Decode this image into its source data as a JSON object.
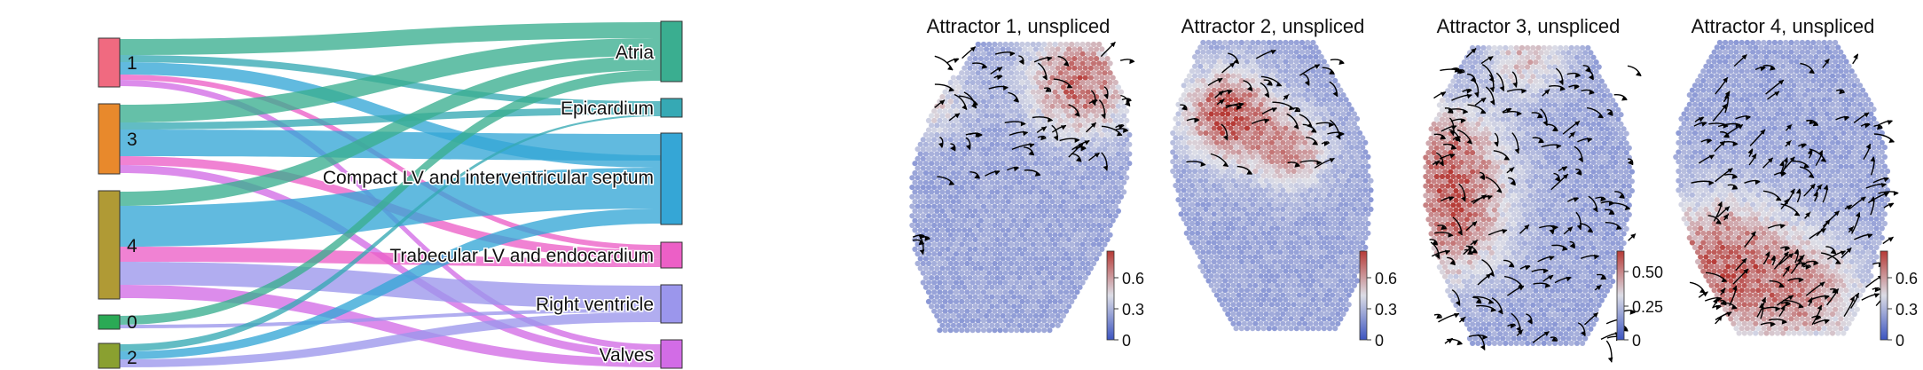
{
  "sankey": {
    "sources": [
      {
        "label": "1",
        "color": "#f06a80"
      },
      {
        "label": "3",
        "color": "#e8892c"
      },
      {
        "label": "4",
        "color": "#b09a35"
      },
      {
        "label": "0",
        "color": "#2aaa55"
      },
      {
        "label": "2",
        "color": "#8aa030"
      }
    ],
    "targets": [
      {
        "label": "Atria",
        "color": "#3aae90"
      },
      {
        "label": "Epicardium",
        "color": "#36a9b4"
      },
      {
        "label": "Compact LV and interventricular septum",
        "color": "#35a6d6"
      },
      {
        "label": "Trabecular LV and endocardium",
        "color": "#ec5fc6"
      },
      {
        "label": "Right ventricle",
        "color": "#9b96ec"
      },
      {
        "label": "Valves",
        "color": "#d26ce6"
      }
    ]
  },
  "panels": [
    {
      "title": "Attractor 1, unspliced",
      "ticks": [
        "0.6",
        "0.3",
        "0"
      ]
    },
    {
      "title": "Attractor 2, unspliced",
      "ticks": [
        "0.6",
        "0.3",
        "0"
      ]
    },
    {
      "title": "Attractor 3, unspliced",
      "ticks": [
        "0.50",
        "0.25",
        "0"
      ]
    },
    {
      "title": "Attractor 4, unspliced",
      "ticks": [
        "0.6",
        "0.3",
        "0"
      ]
    }
  ],
  "colorscale": {
    "low": "#4a61c8",
    "mid": "#dcdde6",
    "high": "#b63a36"
  }
}
